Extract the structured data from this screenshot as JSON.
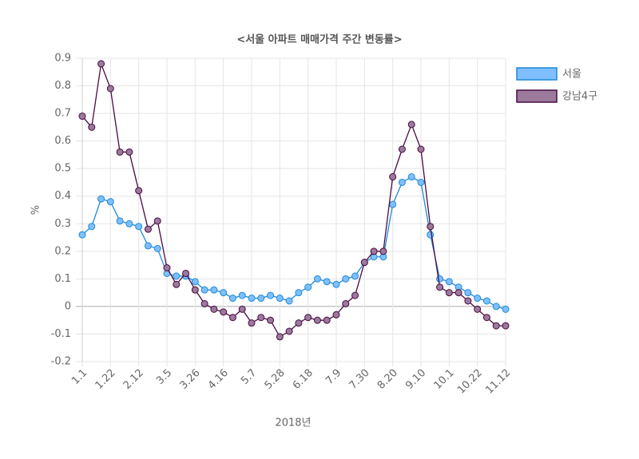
{
  "chart_data": {
    "type": "line",
    "title": "<서울 아파트 매매가격 주간 변동률>",
    "xlabel": "2018년",
    "ylabel": "%",
    "categories": [
      "1.1",
      null,
      null,
      "1.22",
      null,
      null,
      "2.12",
      null,
      null,
      "3.5",
      null,
      null,
      "3.26",
      null,
      null,
      "4.16",
      null,
      null,
      "5.7",
      null,
      null,
      "5.28",
      null,
      null,
      "6.18",
      null,
      null,
      "7.9",
      null,
      null,
      "7.30",
      null,
      null,
      "8.20",
      null,
      null,
      "9.10",
      null,
      null,
      "10.1",
      null,
      null,
      "10.22",
      null,
      null,
      "11.12"
    ],
    "series": [
      {
        "name": "서울",
        "color": "#1f8ad6",
        "marker_color": "#7fbfff",
        "values": [
          0.26,
          0.29,
          0.39,
          0.38,
          0.31,
          0.3,
          0.29,
          0.22,
          0.21,
          0.12,
          0.11,
          0.11,
          0.09,
          0.06,
          0.06,
          0.05,
          0.03,
          0.04,
          0.03,
          0.03,
          0.04,
          0.03,
          0.02,
          0.05,
          0.07,
          0.1,
          0.09,
          0.08,
          0.1,
          0.11,
          0.16,
          0.18,
          0.18,
          0.37,
          0.45,
          0.47,
          0.45,
          0.26,
          0.1,
          0.09,
          0.07,
          0.05,
          0.03,
          0.02,
          0.0,
          -0.01
        ]
      },
      {
        "name": "강남4구",
        "color": "#4a0a42",
        "marker_color": "#9b7a9b",
        "values": [
          0.69,
          0.65,
          0.88,
          0.79,
          0.56,
          0.56,
          0.42,
          0.28,
          0.31,
          0.14,
          0.08,
          0.12,
          0.06,
          0.01,
          -0.01,
          -0.02,
          -0.04,
          -0.01,
          -0.06,
          -0.04,
          -0.05,
          -0.11,
          -0.09,
          -0.06,
          -0.04,
          -0.05,
          -0.05,
          -0.03,
          0.01,
          0.04,
          0.16,
          0.2,
          0.2,
          0.47,
          0.57,
          0.66,
          0.57,
          0.29,
          0.07,
          0.05,
          0.05,
          0.02,
          -0.01,
          -0.04,
          -0.07,
          -0.07
        ]
      }
    ],
    "ylim": [
      -0.2,
      0.9
    ],
    "yticks": [
      -0.2,
      -0.1,
      0,
      0.1,
      0.2,
      0.3,
      0.4,
      0.5,
      0.6,
      0.7,
      0.8,
      0.9
    ],
    "grid": true,
    "legend": "right"
  }
}
